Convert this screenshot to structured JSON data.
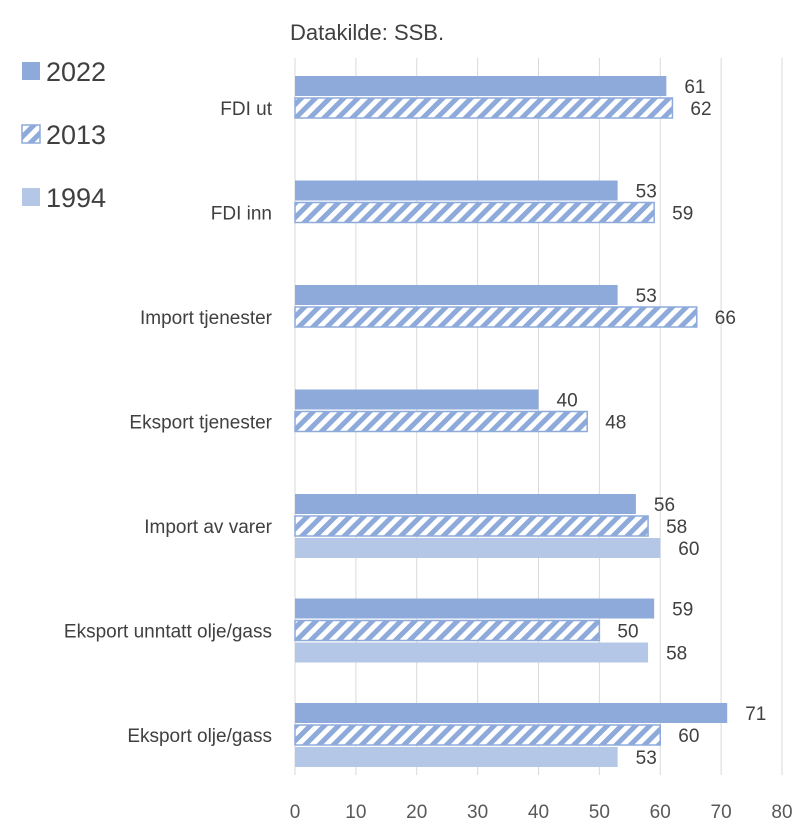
{
  "chart_data": {
    "type": "bar",
    "orientation": "horizontal",
    "subtitle": "Datakilde: SSB.",
    "categories": [
      "FDI ut",
      "FDI inn",
      "Import tjenester",
      "Eksport tjenester",
      "Import av varer",
      "Eksport unntatt olje/gass",
      "Eksport olje/gass"
    ],
    "series": [
      {
        "name": "2022",
        "values": [
          61,
          53,
          53,
          40,
          56,
          59,
          71
        ],
        "color": "#8eaadb",
        "pattern": "solid"
      },
      {
        "name": "2013",
        "values": [
          62,
          59,
          66,
          48,
          58,
          50,
          60
        ],
        "color": "#8eaadb",
        "pattern": "diagonal-hatch"
      },
      {
        "name": "1994",
        "values": [
          null,
          null,
          null,
          null,
          60,
          58,
          53
        ],
        "color": "#b4c7e7",
        "pattern": "solid"
      }
    ],
    "xlim": [
      0,
      80
    ],
    "xticks": [
      "0",
      "10",
      "20",
      "30",
      "40",
      "50",
      "60",
      "70",
      "80"
    ],
    "grid": "vertical",
    "legend": "left"
  }
}
